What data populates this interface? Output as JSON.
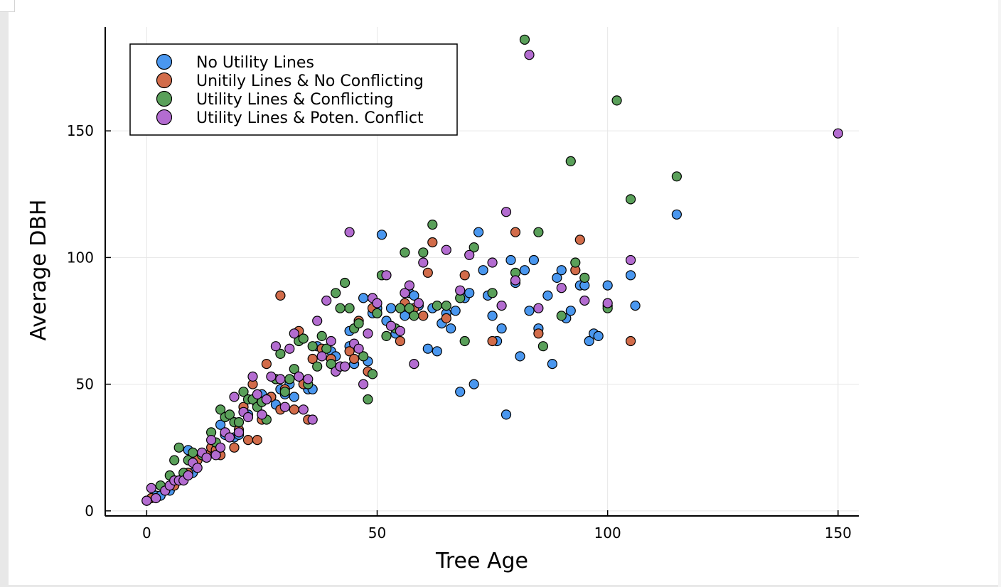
{
  "chart_data": {
    "type": "scatter",
    "title": "",
    "xlabel": "Tree Age",
    "ylabel": "Average DBH",
    "xlim": [
      -9,
      154.5
    ],
    "ylim": [
      -2,
      191
    ],
    "xticks": [
      0,
      50,
      100,
      150
    ],
    "yticks": [
      0,
      50,
      100,
      150
    ],
    "grid": true,
    "legend_position": "top-left",
    "series": [
      {
        "name": "No Utility Lines",
        "color": "#4a97ef",
        "points": [
          [
            0,
            4
          ],
          [
            2,
            6
          ],
          [
            3,
            6
          ],
          [
            5,
            8
          ],
          [
            6,
            12
          ],
          [
            9,
            24
          ],
          [
            10,
            15
          ],
          [
            12,
            22
          ],
          [
            15,
            25
          ],
          [
            16,
            34
          ],
          [
            17,
            30
          ],
          [
            19,
            29
          ],
          [
            20,
            30
          ],
          [
            22,
            38
          ],
          [
            24,
            42
          ],
          [
            25,
            46
          ],
          [
            27,
            45
          ],
          [
            28,
            42
          ],
          [
            29,
            48
          ],
          [
            30,
            46
          ],
          [
            31,
            50
          ],
          [
            32,
            45
          ],
          [
            35,
            48
          ],
          [
            36,
            48
          ],
          [
            37,
            65
          ],
          [
            40,
            63
          ],
          [
            41,
            61
          ],
          [
            44,
            71
          ],
          [
            44,
            65
          ],
          [
            45,
            58
          ],
          [
            47,
            84
          ],
          [
            48,
            59
          ],
          [
            49,
            78
          ],
          [
            50,
            80
          ],
          [
            51,
            109
          ],
          [
            52,
            75
          ],
          [
            53,
            80
          ],
          [
            54,
            70
          ],
          [
            56,
            77
          ],
          [
            57,
            86
          ],
          [
            58,
            85
          ],
          [
            59,
            81
          ],
          [
            61,
            64
          ],
          [
            62,
            80
          ],
          [
            63,
            63
          ],
          [
            64,
            74
          ],
          [
            65,
            78
          ],
          [
            66,
            72
          ],
          [
            67,
            79
          ],
          [
            68,
            47
          ],
          [
            69,
            84
          ],
          [
            70,
            86
          ],
          [
            71,
            50
          ],
          [
            72,
            110
          ],
          [
            73,
            95
          ],
          [
            74,
            85
          ],
          [
            75,
            77
          ],
          [
            76,
            67
          ],
          [
            77,
            72
          ],
          [
            78,
            38
          ],
          [
            79,
            99
          ],
          [
            80,
            90
          ],
          [
            81,
            61
          ],
          [
            82,
            95
          ],
          [
            83,
            79
          ],
          [
            84,
            99
          ],
          [
            85,
            72
          ],
          [
            87,
            85
          ],
          [
            88,
            58
          ],
          [
            89,
            92
          ],
          [
            90,
            95
          ],
          [
            91,
            76
          ],
          [
            92,
            79
          ],
          [
            94,
            89
          ],
          [
            95,
            89
          ],
          [
            96,
            67
          ],
          [
            97,
            70
          ],
          [
            98,
            69
          ],
          [
            100,
            89
          ],
          [
            105,
            93
          ],
          [
            106,
            81
          ],
          [
            115,
            117
          ]
        ]
      },
      {
        "name": "Unitily Lines & No Conflicting",
        "color": "#d26c4a",
        "points": [
          [
            1,
            5
          ],
          [
            4,
            8
          ],
          [
            6,
            10
          ],
          [
            8,
            13
          ],
          [
            9,
            15
          ],
          [
            11,
            20
          ],
          [
            13,
            22
          ],
          [
            14,
            25
          ],
          [
            15,
            24
          ],
          [
            16,
            22
          ],
          [
            19,
            25
          ],
          [
            20,
            32
          ],
          [
            21,
            41
          ],
          [
            22,
            28
          ],
          [
            23,
            50
          ],
          [
            24,
            28
          ],
          [
            25,
            36
          ],
          [
            26,
            58
          ],
          [
            27,
            45
          ],
          [
            28,
            52
          ],
          [
            29,
            40
          ],
          [
            29,
            85
          ],
          [
            30,
            48
          ],
          [
            32,
            40
          ],
          [
            33,
            71
          ],
          [
            34,
            50
          ],
          [
            35,
            36
          ],
          [
            36,
            60
          ],
          [
            38,
            64
          ],
          [
            40,
            60
          ],
          [
            42,
            57
          ],
          [
            44,
            63
          ],
          [
            45,
            60
          ],
          [
            46,
            75
          ],
          [
            48,
            55
          ],
          [
            49,
            80
          ],
          [
            50,
            78
          ],
          [
            55,
            67
          ],
          [
            56,
            82
          ],
          [
            58,
            80
          ],
          [
            60,
            77
          ],
          [
            61,
            94
          ],
          [
            62,
            106
          ],
          [
            65,
            76
          ],
          [
            69,
            93
          ],
          [
            75,
            67
          ],
          [
            80,
            110
          ],
          [
            85,
            70
          ],
          [
            93,
            95
          ],
          [
            94,
            107
          ],
          [
            100,
            81
          ],
          [
            105,
            67
          ]
        ]
      },
      {
        "name": "Utility Lines & Conflicting",
        "color": "#5aa05a",
        "points": [
          [
            3,
            10
          ],
          [
            5,
            14
          ],
          [
            6,
            20
          ],
          [
            7,
            25
          ],
          [
            8,
            15
          ],
          [
            9,
            20
          ],
          [
            10,
            23
          ],
          [
            12,
            22
          ],
          [
            14,
            31
          ],
          [
            15,
            27
          ],
          [
            16,
            40
          ],
          [
            17,
            37
          ],
          [
            18,
            38
          ],
          [
            19,
            35
          ],
          [
            20,
            35
          ],
          [
            21,
            47
          ],
          [
            22,
            44
          ],
          [
            23,
            44
          ],
          [
            24,
            41
          ],
          [
            25,
            43
          ],
          [
            26,
            36
          ],
          [
            28,
            52
          ],
          [
            29,
            62
          ],
          [
            30,
            47
          ],
          [
            31,
            52
          ],
          [
            32,
            56
          ],
          [
            33,
            67
          ],
          [
            34,
            68
          ],
          [
            35,
            50
          ],
          [
            36,
            65
          ],
          [
            37,
            57
          ],
          [
            38,
            69
          ],
          [
            39,
            64
          ],
          [
            40,
            58
          ],
          [
            41,
            86
          ],
          [
            42,
            80
          ],
          [
            43,
            90
          ],
          [
            44,
            80
          ],
          [
            45,
            72
          ],
          [
            46,
            74
          ],
          [
            47,
            61
          ],
          [
            48,
            44
          ],
          [
            49,
            54
          ],
          [
            50,
            78
          ],
          [
            51,
            93
          ],
          [
            52,
            69
          ],
          [
            54,
            72
          ],
          [
            55,
            80
          ],
          [
            56,
            102
          ],
          [
            57,
            80
          ],
          [
            58,
            77
          ],
          [
            60,
            102
          ],
          [
            62,
            113
          ],
          [
            63,
            81
          ],
          [
            65,
            81
          ],
          [
            68,
            84
          ],
          [
            69,
            67
          ],
          [
            71,
            104
          ],
          [
            75,
            86
          ],
          [
            80,
            94
          ],
          [
            82,
            186
          ],
          [
            85,
            110
          ],
          [
            86,
            65
          ],
          [
            90,
            77
          ],
          [
            92,
            138
          ],
          [
            93,
            98
          ],
          [
            95,
            92
          ],
          [
            100,
            80
          ],
          [
            102,
            162
          ],
          [
            105,
            123
          ],
          [
            115,
            132
          ]
        ]
      },
      {
        "name": "Utility Lines & Poten. Conflict",
        "color": "#b36cd0",
        "points": [
          [
            0,
            4
          ],
          [
            1,
            9
          ],
          [
            2,
            5
          ],
          [
            4,
            8
          ],
          [
            5,
            10
          ],
          [
            6,
            12
          ],
          [
            7,
            12
          ],
          [
            8,
            12
          ],
          [
            9,
            14
          ],
          [
            10,
            19
          ],
          [
            11,
            17
          ],
          [
            12,
            23
          ],
          [
            13,
            21
          ],
          [
            14,
            28
          ],
          [
            15,
            22
          ],
          [
            16,
            25
          ],
          [
            17,
            31
          ],
          [
            18,
            29
          ],
          [
            19,
            45
          ],
          [
            20,
            31
          ],
          [
            21,
            39
          ],
          [
            22,
            37
          ],
          [
            23,
            53
          ],
          [
            24,
            46
          ],
          [
            25,
            38
          ],
          [
            26,
            44
          ],
          [
            27,
            53
          ],
          [
            28,
            65
          ],
          [
            29,
            52
          ],
          [
            30,
            41
          ],
          [
            31,
            64
          ],
          [
            32,
            70
          ],
          [
            33,
            53
          ],
          [
            34,
            40
          ],
          [
            35,
            52
          ],
          [
            36,
            36
          ],
          [
            37,
            75
          ],
          [
            38,
            61
          ],
          [
            39,
            83
          ],
          [
            40,
            67
          ],
          [
            41,
            55
          ],
          [
            42,
            57
          ],
          [
            43,
            57
          ],
          [
            44,
            110
          ],
          [
            45,
            66
          ],
          [
            46,
            64
          ],
          [
            47,
            50
          ],
          [
            48,
            70
          ],
          [
            49,
            84
          ],
          [
            50,
            82
          ],
          [
            52,
            93
          ],
          [
            53,
            73
          ],
          [
            55,
            71
          ],
          [
            56,
            86
          ],
          [
            57,
            89
          ],
          [
            58,
            58
          ],
          [
            59,
            82
          ],
          [
            60,
            98
          ],
          [
            65,
            103
          ],
          [
            68,
            87
          ],
          [
            70,
            101
          ],
          [
            75,
            98
          ],
          [
            77,
            81
          ],
          [
            78,
            118
          ],
          [
            80,
            91
          ],
          [
            85,
            80
          ],
          [
            90,
            88
          ],
          [
            95,
            83
          ],
          [
            100,
            82
          ],
          [
            105,
            99
          ],
          [
            83,
            180
          ],
          [
            150,
            149
          ]
        ]
      }
    ]
  }
}
